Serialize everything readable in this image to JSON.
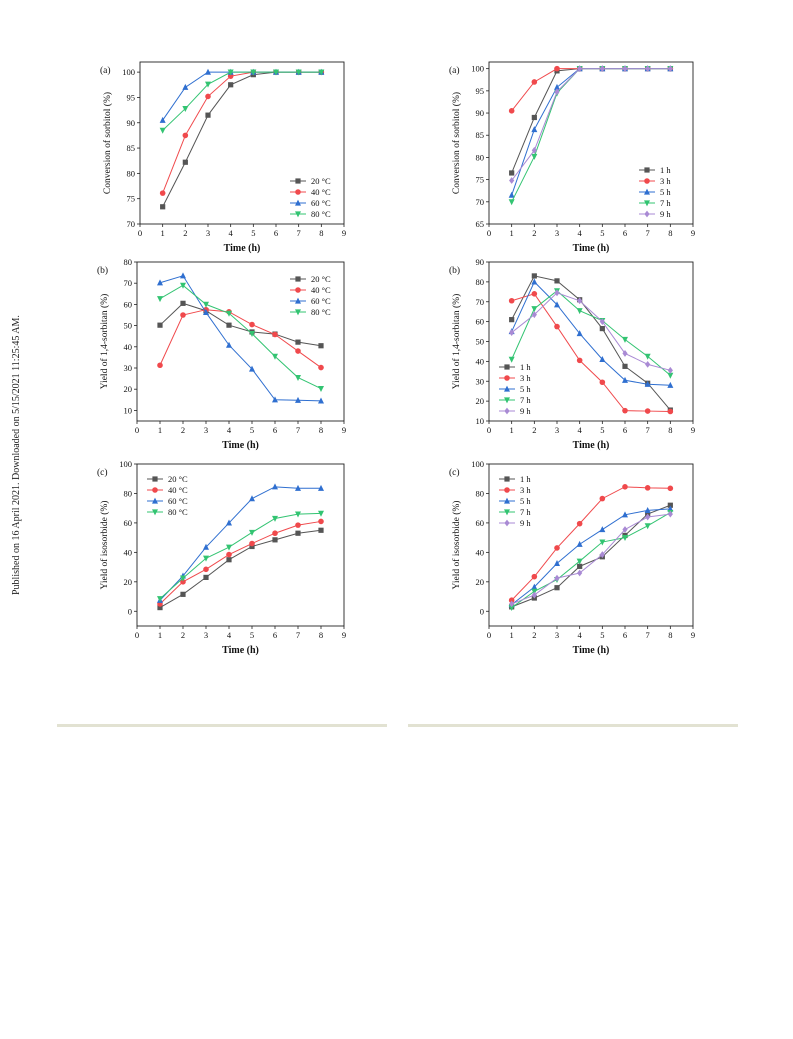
{
  "page": {
    "side_note": "Published on 16 April 2021. Downloaded on 5/15/2021 11:25:45 AM."
  },
  "colors": {
    "s1": "#555555",
    "s2": "#f0494c",
    "s3": "#2f6fd0",
    "s4": "#33c472",
    "s5": "#a98ad4"
  },
  "chart_data": [
    {
      "id": "left-a",
      "type": "line",
      "panel": "(a)",
      "xlabel": "Time (h)",
      "ylabel": "Conversion of sorbitol (%)",
      "xlim": [
        0,
        9
      ],
      "ylim": [
        70,
        102
      ],
      "xticks": [
        0,
        1,
        2,
        3,
        4,
        5,
        6,
        7,
        8,
        9
      ],
      "yticks": [
        70,
        75,
        80,
        85,
        90,
        95,
        100
      ],
      "legend": "bottom-right",
      "x": [
        1,
        2,
        3,
        4,
        5,
        6,
        7,
        8
      ],
      "series": [
        {
          "name": "20 °C",
          "marker": "square",
          "color": "#555555",
          "values": [
            73.4,
            82.2,
            91.5,
            97.5,
            99.5,
            100,
            100,
            100
          ]
        },
        {
          "name": "40 °C",
          "marker": "circle",
          "color": "#f0494c",
          "values": [
            76.1,
            87.5,
            95.2,
            99.2,
            100,
            100,
            100,
            100
          ]
        },
        {
          "name": "60 °C",
          "marker": "triangle-up",
          "color": "#2f6fd0",
          "values": [
            90.5,
            97.0,
            100,
            100,
            100,
            100,
            100,
            100
          ]
        },
        {
          "name": "80 °C",
          "marker": "triangle-down",
          "color": "#33c472",
          "values": [
            88.5,
            92.8,
            97.6,
            100,
            100,
            100,
            100,
            100
          ]
        }
      ]
    },
    {
      "id": "right-a",
      "type": "line",
      "panel": "(a)",
      "xlabel": "Time (h)",
      "ylabel": "Conversion of sorbitol (%)",
      "xlim": [
        0,
        9
      ],
      "ylim": [
        65,
        101.5
      ],
      "xticks": [
        0,
        1,
        2,
        3,
        4,
        5,
        6,
        7,
        8,
        9
      ],
      "yticks": [
        65,
        70,
        75,
        80,
        85,
        90,
        95,
        100
      ],
      "legend": "bottom-right",
      "x": [
        1,
        2,
        3,
        4,
        5,
        6,
        7,
        8
      ],
      "series": [
        {
          "name": "1 h",
          "marker": "square",
          "color": "#555555",
          "values": [
            76.5,
            89.0,
            99.5,
            100,
            100,
            100,
            100,
            100
          ]
        },
        {
          "name": "3 h",
          "marker": "circle",
          "color": "#f0494c",
          "values": [
            90.5,
            97.0,
            100,
            100,
            100,
            100,
            100,
            100
          ]
        },
        {
          "name": "5 h",
          "marker": "triangle-up",
          "color": "#2f6fd0",
          "values": [
            71.5,
            86.3,
            95.8,
            100,
            100,
            100,
            100,
            100
          ]
        },
        {
          "name": "7 h",
          "marker": "triangle-down",
          "color": "#33c472",
          "values": [
            70.0,
            80.2,
            94.5,
            100,
            100,
            100,
            100,
            100
          ]
        },
        {
          "name": "9 h",
          "marker": "diamond",
          "color": "#a98ad4",
          "values": [
            74.8,
            81.6,
            94.8,
            100,
            100,
            100,
            100,
            100
          ]
        }
      ]
    },
    {
      "id": "left-b",
      "type": "line",
      "panel": "(b)",
      "xlabel": "Time (h)",
      "ylabel": "Yield of 1,4-sorbitan (%)",
      "xlim": [
        0,
        9
      ],
      "ylim": [
        5,
        80
      ],
      "xticks": [
        0,
        1,
        2,
        3,
        4,
        5,
        6,
        7,
        8,
        9
      ],
      "yticks": [
        10,
        20,
        30,
        40,
        50,
        60,
        70,
        80
      ],
      "legend": "top-right",
      "x": [
        1,
        2,
        3,
        4,
        5,
        6,
        7,
        8
      ],
      "series": [
        {
          "name": "20 °C",
          "marker": "square",
          "color": "#555555",
          "values": [
            50.2,
            60.5,
            57.0,
            50.2,
            47.0,
            46.0,
            42.2,
            40.5
          ]
        },
        {
          "name": "40 °C",
          "marker": "circle",
          "color": "#f0494c",
          "values": [
            31.3,
            55.0,
            57.5,
            56.5,
            50.5,
            45.8,
            38.0,
            30.2
          ]
        },
        {
          "name": "60 °C",
          "marker": "triangle-up",
          "color": "#2f6fd0",
          "values": [
            70.2,
            73.5,
            56.2,
            40.8,
            29.5,
            15.0,
            14.8,
            14.5
          ]
        },
        {
          "name": "80 °C",
          "marker": "triangle-down",
          "color": "#33c472",
          "values": [
            62.7,
            69.0,
            60.0,
            55.8,
            46.2,
            35.5,
            25.5,
            20.3
          ]
        }
      ]
    },
    {
      "id": "right-b",
      "type": "line",
      "panel": "(b)",
      "xlabel": "Time (h)",
      "ylabel": "Yield of 1,4-sorbitan (%)",
      "xlim": [
        0,
        9
      ],
      "ylim": [
        10,
        90
      ],
      "xticks": [
        0,
        1,
        2,
        3,
        4,
        5,
        6,
        7,
        8,
        9
      ],
      "yticks": [
        10,
        20,
        30,
        40,
        50,
        60,
        70,
        80,
        90
      ],
      "legend": "bottom-left",
      "x": [
        1,
        2,
        3,
        4,
        5,
        6,
        7,
        8
      ],
      "series": [
        {
          "name": "1 h",
          "marker": "square",
          "color": "#555555",
          "values": [
            61.0,
            83.0,
            80.5,
            71.0,
            56.5,
            37.5,
            29.0,
            15.5
          ]
        },
        {
          "name": "3 h",
          "marker": "circle",
          "color": "#f0494c",
          "values": [
            70.5,
            74.0,
            57.5,
            40.5,
            29.5,
            15.2,
            15.0,
            14.8
          ]
        },
        {
          "name": "5 h",
          "marker": "triangle-up",
          "color": "#2f6fd0",
          "values": [
            55.0,
            80.0,
            68.5,
            54.0,
            41.0,
            30.5,
            28.5,
            28.0
          ]
        },
        {
          "name": "7 h",
          "marker": "triangle-down",
          "color": "#33c472",
          "values": [
            41.0,
            66.5,
            75.5,
            65.5,
            60.5,
            51.0,
            42.5,
            33.0
          ]
        },
        {
          "name": "9 h",
          "marker": "diamond",
          "color": "#a98ad4",
          "values": [
            54.5,
            63.5,
            74.5,
            70.5,
            60.0,
            44.0,
            38.5,
            35.5
          ]
        }
      ]
    },
    {
      "id": "left-c",
      "type": "line",
      "panel": "(c)",
      "xlabel": "Time (h)",
      "ylabel": "Yield of isosorbide (%)",
      "xlim": [
        0,
        9
      ],
      "ylim": [
        -10,
        100
      ],
      "xticks": [
        0,
        1,
        2,
        3,
        4,
        5,
        6,
        7,
        8,
        9
      ],
      "yticks": [
        0,
        20,
        40,
        60,
        80,
        100
      ],
      "legend": "top-left",
      "x": [
        1,
        2,
        3,
        4,
        5,
        6,
        7,
        8
      ],
      "series": [
        {
          "name": "20 °C",
          "marker": "square",
          "color": "#555555",
          "values": [
            2.5,
            11.5,
            23.0,
            35.0,
            44.0,
            48.5,
            53.0,
            55.0
          ]
        },
        {
          "name": "40 °C",
          "marker": "circle",
          "color": "#f0494c",
          "values": [
            5.0,
            20.0,
            28.5,
            38.5,
            46.0,
            53.0,
            58.5,
            61.0
          ]
        },
        {
          "name": "60 °C",
          "marker": "triangle-up",
          "color": "#2f6fd0",
          "values": [
            7.5,
            24.0,
            43.5,
            60.0,
            76.5,
            84.5,
            83.5,
            83.5
          ]
        },
        {
          "name": "80 °C",
          "marker": "triangle-down",
          "color": "#33c472",
          "values": [
            8.5,
            22.5,
            36.0,
            43.5,
            53.5,
            63.0,
            66.0,
            66.5
          ]
        }
      ]
    },
    {
      "id": "right-c",
      "type": "line",
      "panel": "(c)",
      "xlabel": "Time (h)",
      "ylabel": "Yield of isosorbide (%)",
      "xlim": [
        0,
        9
      ],
      "ylim": [
        -10,
        100
      ],
      "xticks": [
        0,
        1,
        2,
        3,
        4,
        5,
        6,
        7,
        8,
        9
      ],
      "yticks": [
        0,
        20,
        40,
        60,
        80,
        100
      ],
      "legend": "top-left",
      "x": [
        1,
        2,
        3,
        4,
        5,
        6,
        7,
        8
      ],
      "series": [
        {
          "name": "1 h",
          "marker": "square",
          "color": "#555555",
          "values": [
            3.0,
            9.0,
            16.0,
            30.5,
            37.0,
            51.5,
            66.0,
            72.0
          ]
        },
        {
          "name": "3 h",
          "marker": "circle",
          "color": "#f0494c",
          "values": [
            7.5,
            23.5,
            43.0,
            59.5,
            76.5,
            84.5,
            83.8,
            83.5
          ]
        },
        {
          "name": "5 h",
          "marker": "triangle-up",
          "color": "#2f6fd0",
          "values": [
            4.5,
            16.5,
            32.5,
            45.5,
            55.5,
            65.5,
            68.5,
            69.5
          ]
        },
        {
          "name": "7 h",
          "marker": "triangle-down",
          "color": "#33c472",
          "values": [
            2.5,
            13.5,
            21.5,
            34.0,
            47.0,
            50.0,
            58.0,
            67.0
          ]
        },
        {
          "name": "9 h",
          "marker": "diamond",
          "color": "#a98ad4",
          "values": [
            5.0,
            11.0,
            22.5,
            26.0,
            38.5,
            55.5,
            64.0,
            66.0
          ]
        }
      ]
    }
  ]
}
